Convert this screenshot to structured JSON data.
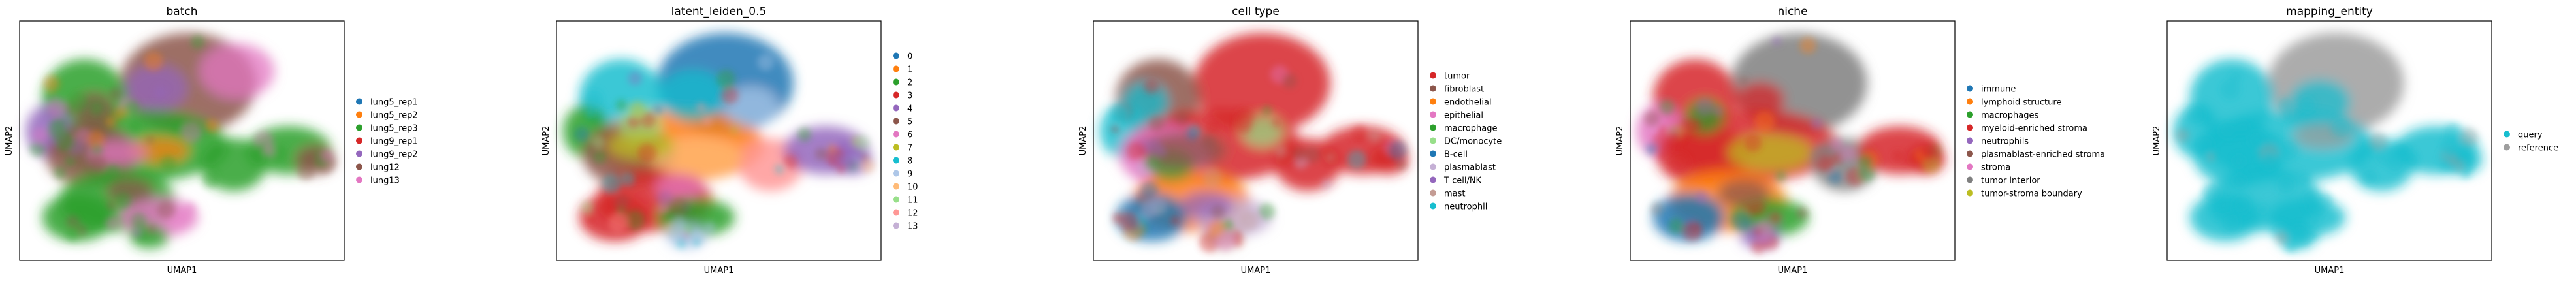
{
  "chart_data": [
    {
      "type": "scatter",
      "title": "batch",
      "xlabel": "UMAP1",
      "ylabel": "UMAP2",
      "grid": false,
      "legend_position": "right",
      "series": [
        {
          "name": "lung5_rep1",
          "color": "#1f77b4"
        },
        {
          "name": "lung5_rep2",
          "color": "#ff7f0e"
        },
        {
          "name": "lung5_rep3",
          "color": "#2ca02c"
        },
        {
          "name": "lung9_rep1",
          "color": "#d62728"
        },
        {
          "name": "lung9_rep2",
          "color": "#9467bd"
        },
        {
          "name": "lung12",
          "color": "#8c564b"
        },
        {
          "name": "lung13",
          "color": "#e377c2"
        }
      ]
    },
    {
      "type": "scatter",
      "title": "latent_leiden_0.5",
      "xlabel": "UMAP1",
      "ylabel": "UMAP2",
      "grid": false,
      "legend_position": "right",
      "series": [
        {
          "name": "0",
          "color": "#1f77b4"
        },
        {
          "name": "1",
          "color": "#ff7f0e"
        },
        {
          "name": "2",
          "color": "#2ca02c"
        },
        {
          "name": "3",
          "color": "#d62728"
        },
        {
          "name": "4",
          "color": "#9467bd"
        },
        {
          "name": "5",
          "color": "#8c564b"
        },
        {
          "name": "6",
          "color": "#e377c2"
        },
        {
          "name": "7",
          "color": "#bcbd22"
        },
        {
          "name": "8",
          "color": "#17becf"
        },
        {
          "name": "9",
          "color": "#aec7e8"
        },
        {
          "name": "10",
          "color": "#ffbb78"
        },
        {
          "name": "11",
          "color": "#98df8a"
        },
        {
          "name": "12",
          "color": "#ff9896"
        },
        {
          "name": "13",
          "color": "#c5b0d5"
        }
      ]
    },
    {
      "type": "scatter",
      "title": "cell type",
      "xlabel": "UMAP1",
      "ylabel": "UMAP2",
      "grid": false,
      "legend_position": "right",
      "series": [
        {
          "name": "tumor",
          "color": "#d62728"
        },
        {
          "name": "fibroblast",
          "color": "#8c564b"
        },
        {
          "name": "endothelial",
          "color": "#ff7f0e"
        },
        {
          "name": "epithelial",
          "color": "#e377c2"
        },
        {
          "name": "macrophage",
          "color": "#2ca02c"
        },
        {
          "name": "DC/monocyte",
          "color": "#98df8a"
        },
        {
          "name": "B-cell",
          "color": "#1f77b4"
        },
        {
          "name": "plasmablast",
          "color": "#c5b0d5"
        },
        {
          "name": "T cell/NK",
          "color": "#9467bd"
        },
        {
          "name": "mast",
          "color": "#c49c94"
        },
        {
          "name": "neutrophil",
          "color": "#17becf"
        }
      ]
    },
    {
      "type": "scatter",
      "title": "niche",
      "xlabel": "UMAP1",
      "ylabel": "UMAP2",
      "grid": false,
      "legend_position": "right",
      "series": [
        {
          "name": "immune",
          "color": "#1f77b4"
        },
        {
          "name": "lymphoid structure",
          "color": "#ff7f0e"
        },
        {
          "name": "macrophages",
          "color": "#2ca02c"
        },
        {
          "name": "myeloid-enriched stroma",
          "color": "#d62728"
        },
        {
          "name": "neutrophils",
          "color": "#9467bd"
        },
        {
          "name": "plasmablast-enriched stroma",
          "color": "#8c564b"
        },
        {
          "name": "stroma",
          "color": "#e377c2"
        },
        {
          "name": "tumor interior",
          "color": "#7f7f7f"
        },
        {
          "name": "tumor-stroma boundary",
          "color": "#bcbd22"
        }
      ]
    },
    {
      "type": "scatter",
      "title": "mapping_entity",
      "xlabel": "UMAP1",
      "ylabel": "UMAP2",
      "grid": false,
      "legend_position": "right",
      "series": [
        {
          "name": "query",
          "color": "#17becf"
        },
        {
          "name": "reference",
          "color": "#9e9e9e"
        }
      ]
    }
  ]
}
